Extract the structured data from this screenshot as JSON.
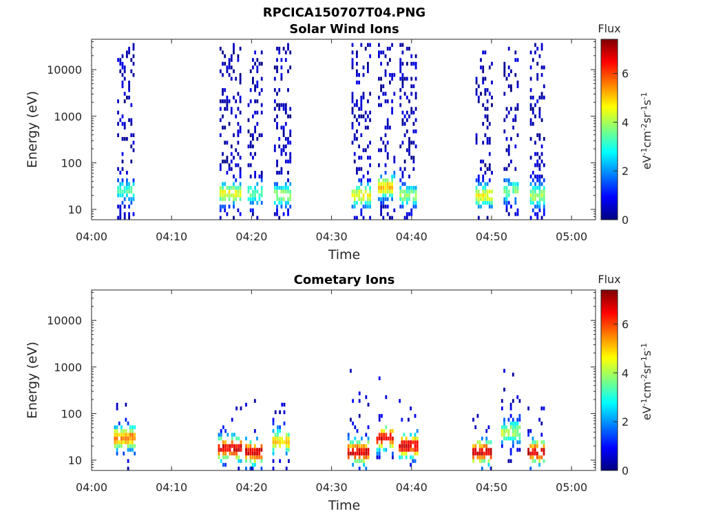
{
  "figure_title": "RPCICA150707T04.PNG",
  "colors": {
    "axis": "#262626",
    "colormap": [
      "#00007f",
      "#0000ff",
      "#007fff",
      "#00ffff",
      "#7fff7f",
      "#ffff00",
      "#ff7f00",
      "#ff0000",
      "#7f0000"
    ]
  },
  "chart_data": [
    {
      "type": "heatmap",
      "title": "Solar Wind Ions",
      "xlabel": "Time",
      "ylabel": "Energy (eV)",
      "x_ticks": [
        "04:00",
        "04:10",
        "04:20",
        "04:30",
        "04:40",
        "04:50",
        "05:00"
      ],
      "x_range_min": [
        0,
        63
      ],
      "y_scale": "log",
      "y_range_ev": [
        6,
        45000
      ],
      "y_ticks": [
        "10",
        "100",
        "1000",
        "10000"
      ],
      "colorbar": {
        "title": "Flux",
        "ticks": [
          "0",
          "2",
          "4",
          "6"
        ],
        "range": [
          0,
          7.4
        ],
        "unit": "eV-1 cm-2 sr-1 s-1"
      },
      "bursts": [
        {
          "t_start_min": 3.2,
          "t_end_min": 5.4,
          "e_max_ev": 40000,
          "peak_e_ev": 25,
          "peak_flux": 3.2
        },
        {
          "t_start_min": 16.0,
          "t_end_min": 18.5,
          "e_max_ev": 40000,
          "peak_e_ev": 22,
          "peak_flux": 4.5
        },
        {
          "t_start_min": 19.5,
          "t_end_min": 21.2,
          "e_max_ev": 25000,
          "peak_e_ev": 22,
          "peak_flux": 3.5
        },
        {
          "t_start_min": 22.8,
          "t_end_min": 24.8,
          "e_max_ev": 40000,
          "peak_e_ev": 20,
          "peak_flux": 4.0
        },
        {
          "t_start_min": 32.5,
          "t_end_min": 34.8,
          "e_max_ev": 40000,
          "peak_e_ev": 20,
          "peak_flux": 4.6
        },
        {
          "t_start_min": 35.8,
          "t_end_min": 37.9,
          "e_max_ev": 35000,
          "peak_e_ev": 30,
          "peak_flux": 5.0
        },
        {
          "t_start_min": 38.5,
          "t_end_min": 40.5,
          "e_max_ev": 40000,
          "peak_e_ev": 20,
          "peak_flux": 3.8
        },
        {
          "t_start_min": 48.0,
          "t_end_min": 50.0,
          "e_max_ev": 35000,
          "peak_e_ev": 20,
          "peak_flux": 4.6
        },
        {
          "t_start_min": 51.5,
          "t_end_min": 53.3,
          "e_max_ev": 30000,
          "peak_e_ev": 25,
          "peak_flux": 3.5
        },
        {
          "t_start_min": 54.8,
          "t_end_min": 56.5,
          "e_max_ev": 35000,
          "peak_e_ev": 20,
          "peak_flux": 4.0
        }
      ]
    },
    {
      "type": "heatmap",
      "title": "Cometary Ions",
      "xlabel": "Time",
      "ylabel": "Energy (eV)",
      "x_ticks": [
        "04:00",
        "04:10",
        "04:20",
        "04:30",
        "04:40",
        "04:50",
        "05:00"
      ],
      "x_range_min": [
        0,
        63
      ],
      "y_scale": "log",
      "y_range_ev": [
        6,
        45000
      ],
      "y_ticks": [
        "10",
        "100",
        "1000",
        "10000"
      ],
      "colorbar": {
        "title": "Flux",
        "ticks": [
          "0",
          "2",
          "4",
          "6"
        ],
        "range": [
          0,
          7.4
        ],
        "unit": "eV-1 cm-2 sr-1 s-1"
      },
      "bursts": [
        {
          "t_start_min": 2.8,
          "t_end_min": 5.4,
          "e_max_ev": 180,
          "peak_e_ev": 30,
          "peak_flux": 5.6
        },
        {
          "t_start_min": 15.8,
          "t_end_min": 18.6,
          "e_max_ev": 180,
          "peak_e_ev": 18,
          "peak_flux": 6.8
        },
        {
          "t_start_min": 19.2,
          "t_end_min": 21.2,
          "e_max_ev": 200,
          "peak_e_ev": 15,
          "peak_flux": 6.8
        },
        {
          "t_start_min": 22.6,
          "t_end_min": 24.6,
          "e_max_ev": 180,
          "peak_e_ev": 25,
          "peak_flux": 5.0
        },
        {
          "t_start_min": 32.0,
          "t_end_min": 34.6,
          "e_max_ev": 900,
          "peak_e_ev": 15,
          "peak_flux": 6.8
        },
        {
          "t_start_min": 35.6,
          "t_end_min": 37.8,
          "e_max_ev": 900,
          "peak_e_ev": 30,
          "peak_flux": 6.6
        },
        {
          "t_start_min": 38.4,
          "t_end_min": 40.8,
          "e_max_ev": 200,
          "peak_e_ev": 20,
          "peak_flux": 6.8
        },
        {
          "t_start_min": 47.6,
          "t_end_min": 50.0,
          "e_max_ev": 100,
          "peak_e_ev": 15,
          "peak_flux": 6.8
        },
        {
          "t_start_min": 51.2,
          "t_end_min": 53.5,
          "e_max_ev": 2200,
          "peak_e_ev": 40,
          "peak_flux": 4.0
        },
        {
          "t_start_min": 54.5,
          "t_end_min": 56.6,
          "e_max_ev": 200,
          "peak_e_ev": 15,
          "peak_flux": 6.8
        }
      ]
    }
  ]
}
